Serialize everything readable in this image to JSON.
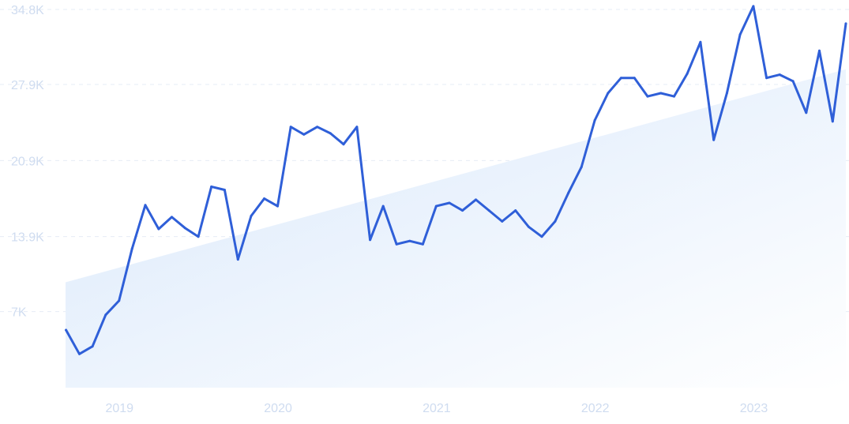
{
  "chart_data": {
    "type": "line",
    "title": "",
    "xlabel": "",
    "ylabel": "",
    "y_ticks": [
      "34.8K",
      "27.9K",
      "20.9K",
      "13.9K",
      "7K"
    ],
    "y_tick_values": [
      34800,
      27900,
      20900,
      13900,
      7000
    ],
    "x_ticks": [
      "2019",
      "2020",
      "2021",
      "2022",
      "2023"
    ],
    "x_tick_values": [
      2019.17,
      2020.17,
      2021.17,
      2022.17,
      2023.17
    ],
    "ylim": [
      0,
      34800
    ],
    "xlim": [
      2018.83,
      2023.75
    ],
    "grid": true,
    "legend": "none",
    "trend": {
      "start": 9700,
      "end": 29300
    },
    "colors": {
      "line": "#2f5fd8",
      "grid": "#e6ecf5",
      "tick": "#cfdcf0",
      "fill_start": "#d9e8fb",
      "fill_end": "#ffffff"
    },
    "series": [
      {
        "x": [
          2018.833,
          2018.917,
          2019.0,
          2019.083,
          2019.167,
          2019.25,
          2019.333,
          2019.417,
          2019.5,
          2019.583,
          2019.667,
          2019.75,
          2019.833,
          2019.917,
          2020.0,
          2020.083,
          2020.167,
          2020.25,
          2020.333,
          2020.417,
          2020.5,
          2020.583,
          2020.667,
          2020.75,
          2020.833,
          2020.917,
          2021.0,
          2021.083,
          2021.167,
          2021.25,
          2021.333,
          2021.417,
          2021.5,
          2021.583,
          2021.667,
          2021.75,
          2021.833,
          2021.917,
          2022.0,
          2022.083,
          2022.167,
          2022.25,
          2022.333,
          2022.417,
          2022.5,
          2022.583,
          2022.667,
          2022.75,
          2022.833,
          2022.917,
          2023.0,
          2023.083,
          2023.167,
          2023.25,
          2023.333,
          2023.417,
          2023.5,
          2023.583,
          2023.667,
          2023.75
        ],
        "values": [
          5300,
          3100,
          3800,
          6700,
          8000,
          12800,
          16800,
          14600,
          15700,
          14700,
          13900,
          18500,
          18200,
          11800,
          15800,
          17400,
          16700,
          24000,
          23300,
          24000,
          23400,
          22400,
          24000,
          13600,
          16700,
          13200,
          13500,
          13200,
          16700,
          17000,
          16300,
          17300,
          16300,
          15300,
          16300,
          14800,
          13900,
          15300,
          17900,
          20300,
          24600,
          27100,
          28500,
          28500,
          26800,
          27100,
          26800,
          28900,
          31800,
          22800,
          27100,
          32500,
          35100,
          28500,
          28800,
          28200,
          25300,
          31000,
          24500,
          33500
        ]
      }
    ]
  }
}
